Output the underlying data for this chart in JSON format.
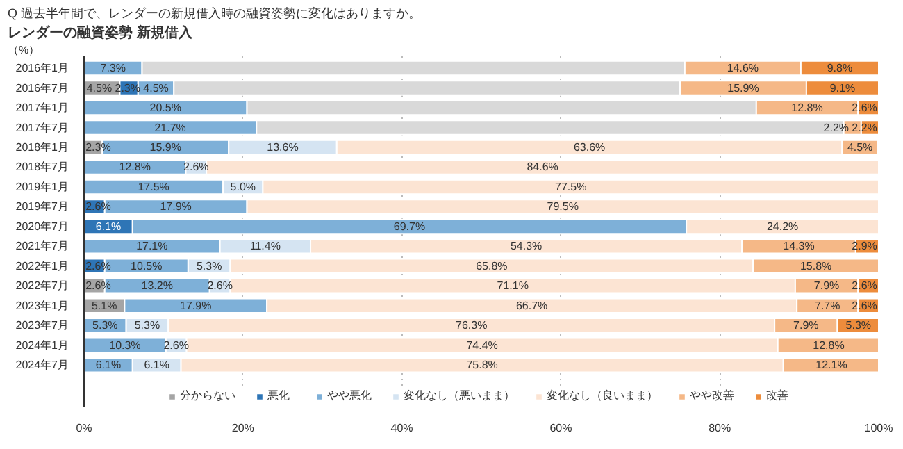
{
  "chart_data": {
    "type": "bar",
    "orientation": "horizontal",
    "stacked": true,
    "title": "過去半年間で、レンダーの新規借入時の融資姿勢に変化はありますか。",
    "subtitle": "レンダーの融資姿勢 新規借入",
    "annotations": [
      "Q",
      "（%）"
    ],
    "categories": [
      "2016年1月",
      "2016年7月",
      "2017年1月",
      "2017年7月",
      "2018年1月",
      "2018年7月",
      "2019年1月",
      "2019年7月",
      "2020年7月",
      "2021年7月",
      "2022年1月",
      "2022年7月",
      "2023年1月",
      "2023年7月",
      "2024年1月",
      "2024年7月"
    ],
    "series": [
      {
        "name": "分からない",
        "color": "#a5a5a5",
        "values": [
          null,
          4.5,
          null,
          null,
          2.3,
          null,
          null,
          null,
          null,
          null,
          null,
          2.6,
          5.1,
          null,
          null,
          null
        ],
        "value_labels": [
          null,
          "4.5%",
          null,
          null,
          "2.3%",
          null,
          null,
          null,
          null,
          null,
          null,
          "2.6%",
          "5.1%",
          null,
          null,
          null
        ]
      },
      {
        "name": "悪化",
        "color": "#2e75b6",
        "values": [
          null,
          2.3,
          null,
          null,
          null,
          null,
          null,
          2.6,
          6.1,
          null,
          2.6,
          null,
          null,
          null,
          null,
          null
        ],
        "value_labels": [
          null,
          "2.3%",
          null,
          null,
          null,
          null,
          null,
          "2.6%",
          "6.1%",
          null,
          "2.6%",
          null,
          null,
          null,
          null,
          null
        ]
      },
      {
        "name": "やや悪化",
        "color": "#7eb0d8",
        "values": [
          7.3,
          4.5,
          20.5,
          21.7,
          15.9,
          12.8,
          17.5,
          17.9,
          69.7,
          17.1,
          10.5,
          13.2,
          17.9,
          5.3,
          10.3,
          6.1
        ],
        "value_labels": [
          "7.3%",
          "4.5%",
          "20.5%",
          "21.7%",
          "15.9%",
          "12.8%",
          "17.5%",
          "17.9%",
          "69.7%",
          "17.1%",
          "10.5%",
          "13.2%",
          "17.9%",
          "5.3%",
          "10.3%",
          "6.1%"
        ]
      },
      {
        "name": "変化なし（悪いまま）",
        "color": "#d5e4f2",
        "values": [
          null,
          null,
          null,
          null,
          13.6,
          2.6,
          5.0,
          null,
          null,
          11.4,
          5.3,
          2.6,
          null,
          5.3,
          2.6,
          6.1
        ],
        "value_labels": [
          null,
          null,
          null,
          null,
          "13.6%",
          "2.6%",
          "5.0%",
          null,
          null,
          "11.4%",
          "5.3%",
          "2.6%",
          null,
          "5.3%",
          "2.6%",
          "6.1%"
        ]
      },
      {
        "color": "#d9d9d9",
        "values": [
          68.3,
          63.7,
          64.1,
          73.9,
          null,
          null,
          null,
          null,
          null,
          null,
          null,
          null,
          null,
          null,
          null,
          null
        ]
      },
      {
        "name": "変化なし（良いまま）",
        "color": "#fce4d3",
        "values": [
          null,
          null,
          null,
          null,
          63.6,
          84.6,
          77.5,
          79.5,
          24.2,
          54.3,
          65.8,
          71.1,
          66.7,
          76.3,
          74.4,
          75.8
        ],
        "value_labels": [
          null,
          null,
          null,
          null,
          "63.6%",
          "84.6%",
          "77.5%",
          "79.5%",
          "24.2%",
          "54.3%",
          "65.8%",
          "71.1%",
          "66.7%",
          "76.3%",
          "74.4%",
          "75.8%"
        ]
      },
      {
        "name": "やや改善",
        "color": "#f5b887",
        "values": [
          14.6,
          15.9,
          12.8,
          2.2,
          4.5,
          null,
          null,
          null,
          null,
          14.3,
          15.8,
          7.9,
          7.7,
          7.9,
          12.8,
          12.1
        ],
        "value_labels": [
          "14.6%",
          "15.9%",
          "12.8%",
          "2.2%",
          "4.5%",
          null,
          null,
          null,
          null,
          "14.3%",
          "15.8%",
          "7.9%",
          "7.7%",
          "7.9%",
          "12.8%",
          "12.1%"
        ]
      },
      {
        "name": "改善",
        "color": "#ed8c3c",
        "values": [
          9.8,
          9.1,
          2.6,
          2.2,
          null,
          null,
          null,
          null,
          null,
          2.9,
          null,
          2.6,
          2.6,
          5.3,
          null,
          null
        ],
        "value_labels": [
          "9.8%",
          "9.1%",
          "2.6%",
          "2.2%",
          null,
          null,
          null,
          null,
          null,
          "2.9%",
          null,
          "2.6%",
          "2.6%",
          "5.3%",
          null,
          null
        ]
      }
    ],
    "xlim": [
      0,
      100
    ],
    "xticks": [
      {
        "value": 0,
        "label": "0%"
      },
      {
        "value": 20,
        "label": "20%"
      },
      {
        "value": 40,
        "label": "40%"
      },
      {
        "value": 60,
        "label": "60%"
      },
      {
        "value": 80,
        "label": "80%"
      },
      {
        "value": 100,
        "label": "100%"
      }
    ],
    "grid": "x",
    "legend": "bottom"
  }
}
